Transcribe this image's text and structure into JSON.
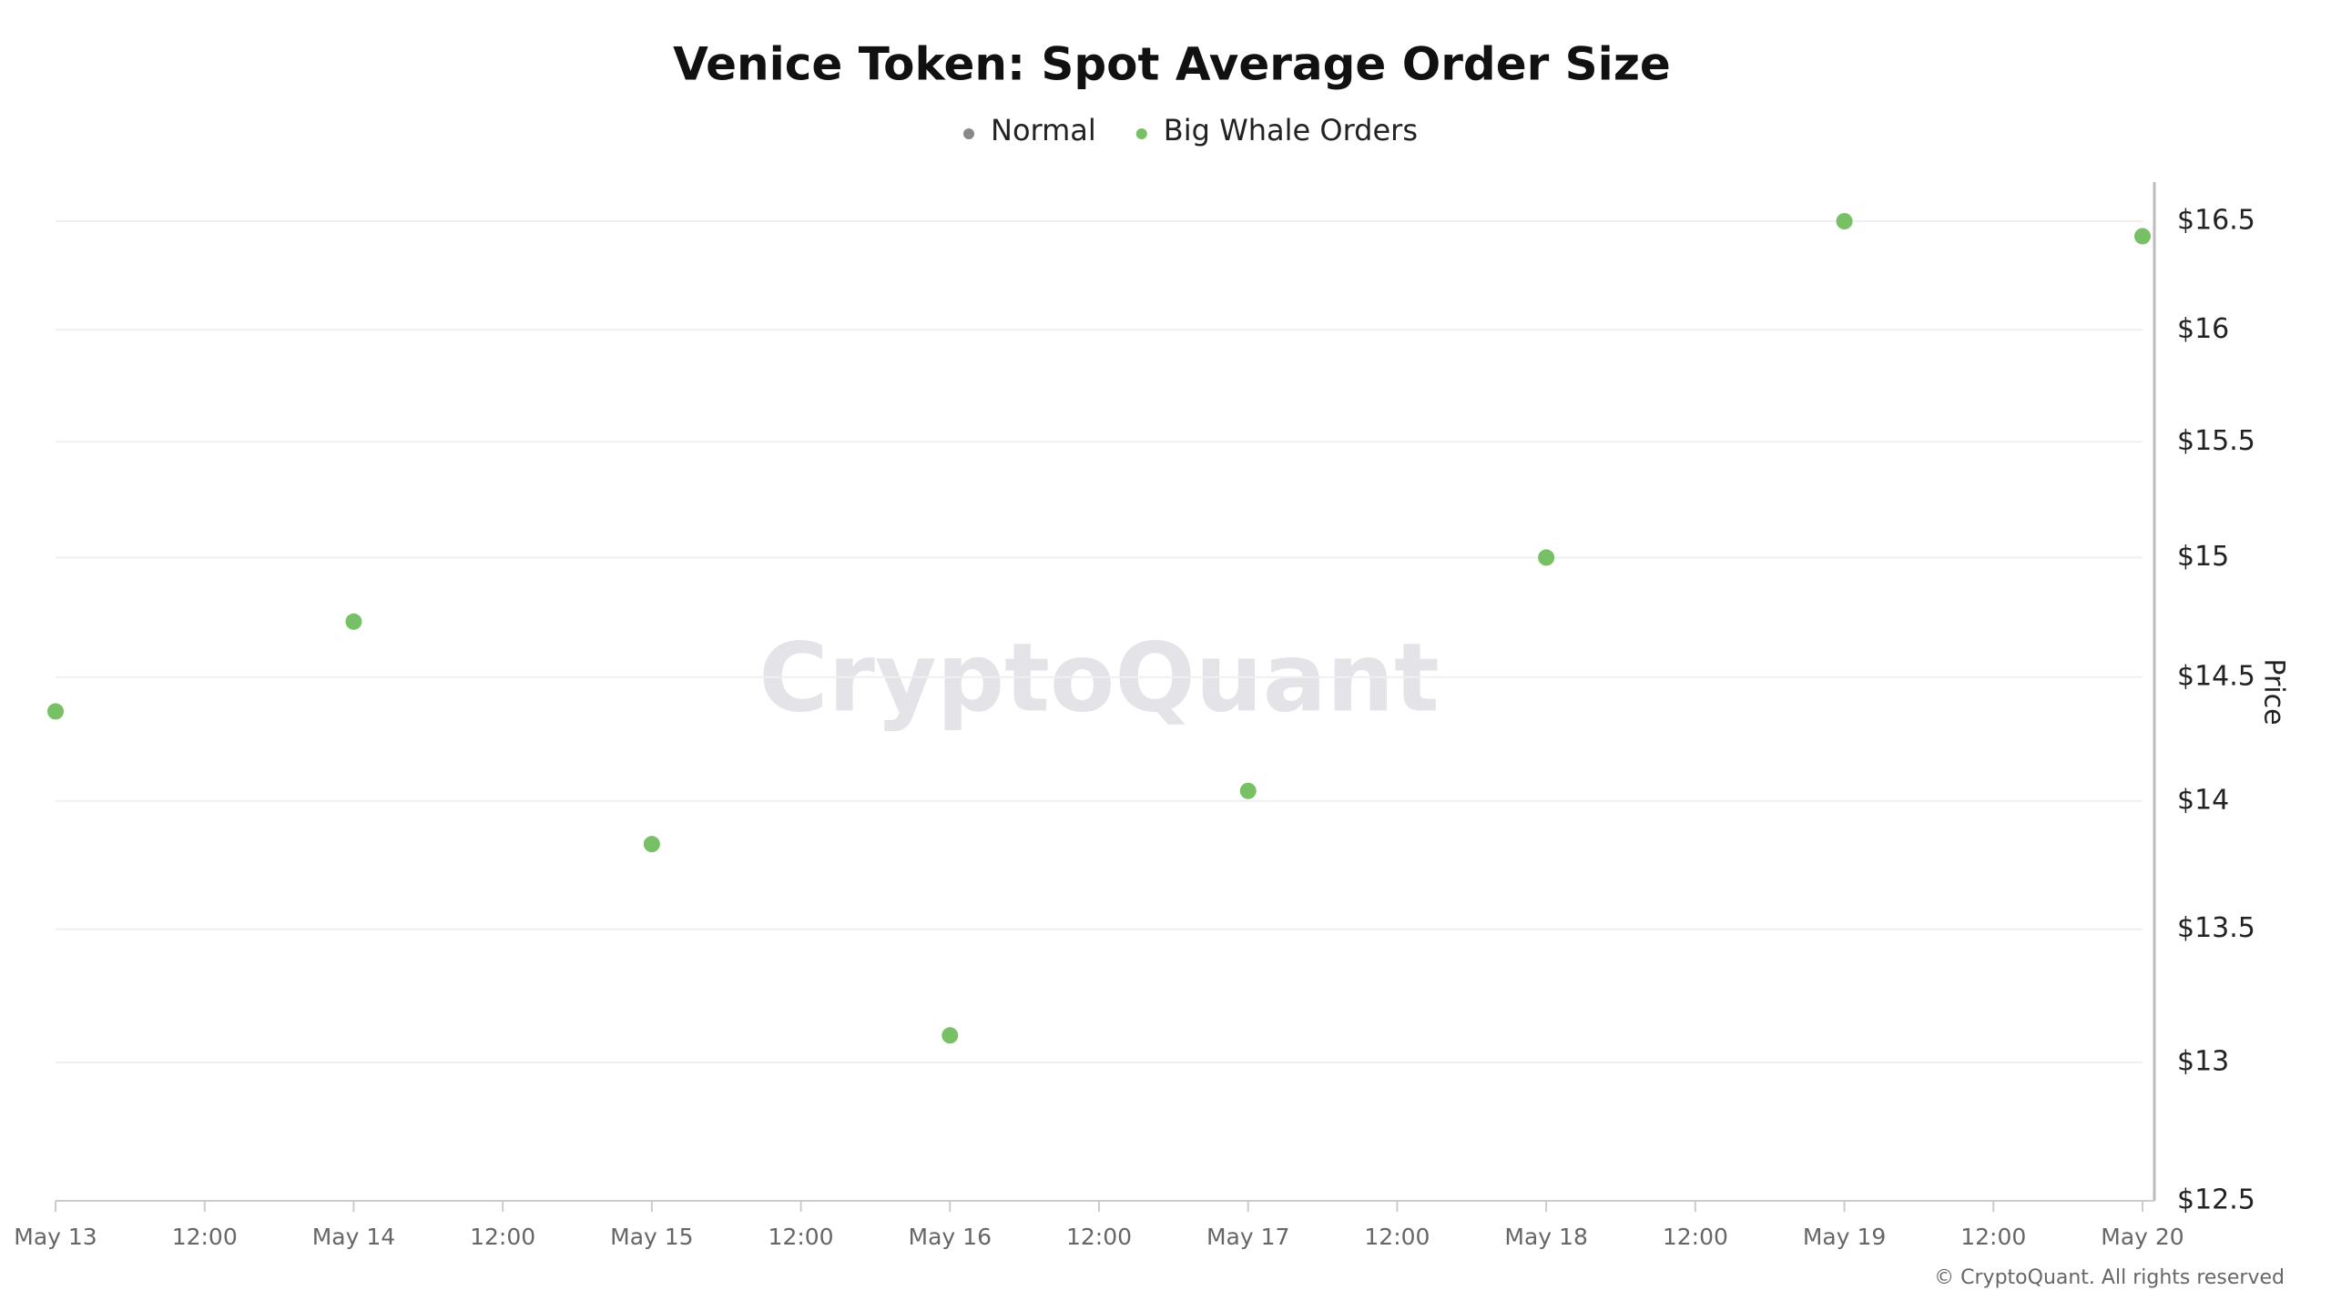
{
  "chart_data": {
    "type": "scatter",
    "title": "Venice Token: Spot Average Order Size",
    "watermark": "CryptoQuant",
    "footer": "© CryptoQuant. All rights reserved",
    "y_label": "Price",
    "categories": [
      "May 13",
      "12:00",
      "May 14",
      "12:00",
      "May 15",
      "12:00",
      "May 16",
      "12:00",
      "May 17",
      "12:00",
      "May 18",
      "12:00",
      "May 19",
      "12:00",
      "May 20"
    ],
    "series": [
      {
        "name": "Normal",
        "color": "#888888",
        "values": [
          null,
          null,
          null,
          null,
          null,
          null,
          null,
          null,
          null,
          null,
          null,
          null,
          null,
          null,
          null
        ]
      },
      {
        "name": "Big Whale Orders",
        "color": "#77c066",
        "values": [
          14.36,
          null,
          14.73,
          null,
          13.83,
          null,
          13.1,
          null,
          14.04,
          null,
          15.0,
          null,
          16.5,
          null,
          16.43
        ]
      }
    ],
    "ylim": [
      12.5,
      16.5
    ],
    "yticks": [
      {
        "value": 12.5,
        "label": "$12.5"
      },
      {
        "value": 13,
        "label": "$13"
      },
      {
        "value": 13.5,
        "label": "$13.5"
      },
      {
        "value": 14,
        "label": "$14"
      },
      {
        "value": 14.5,
        "label": "$14.5"
      },
      {
        "value": 15,
        "label": "$15"
      },
      {
        "value": 15.5,
        "label": "$15.5"
      },
      {
        "value": 16,
        "label": "$16"
      },
      {
        "value": 16.5,
        "label": "$16.5"
      }
    ],
    "log_scale": true,
    "grid": true
  }
}
